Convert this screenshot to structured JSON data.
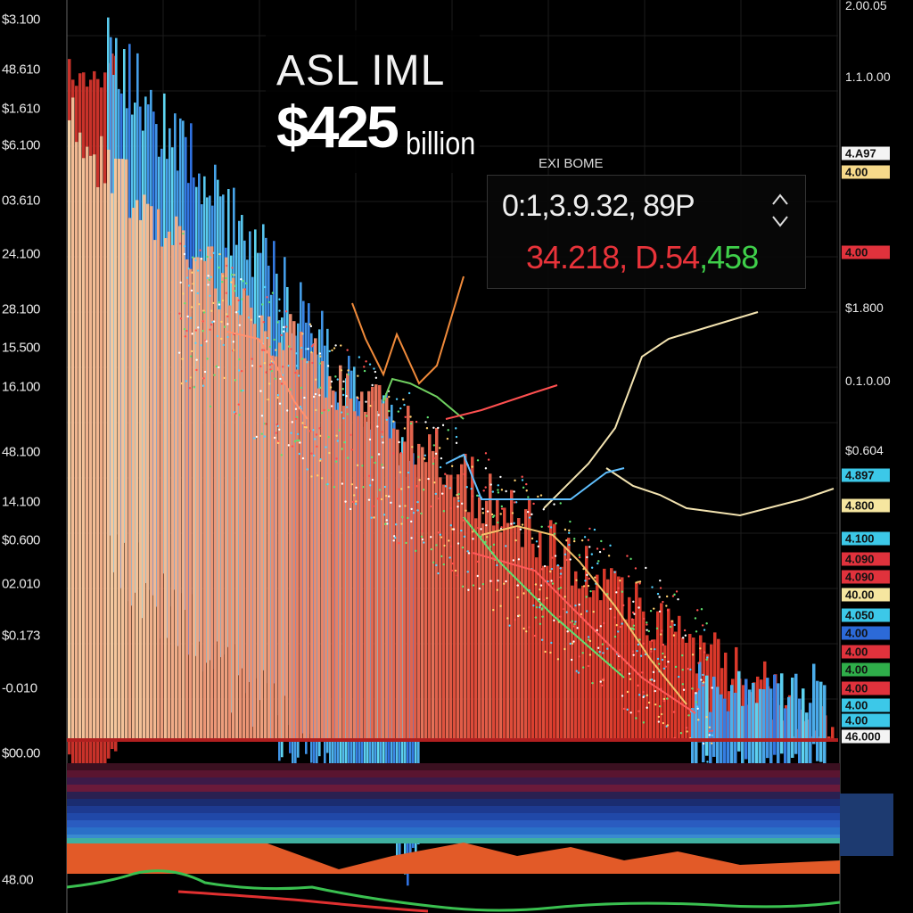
{
  "header": {
    "ticker": "ASL IML",
    "value": "$425",
    "unit": "billion"
  },
  "quote": {
    "label": "EXI BOME",
    "time": "0:1,3.9.32, 89P",
    "down": "34.218, D.54",
    "up": ",458"
  },
  "left_axis": [
    "$3.100",
    "48.610",
    "$1.610",
    "$6.100",
    "03.610",
    "24.100",
    "28.100",
    "15.500",
    "16.100",
    "48.100",
    "14.100",
    "$0.600",
    "02.010",
    "$0.173",
    "-0.010",
    "$00.00",
    "48.00"
  ],
  "right_axis": [
    "2.00.05",
    "1.1.0.00",
    "4.A97",
    "4.00",
    "4.00",
    "$1.800",
    "0.1.0.00",
    "$0.604",
    "4.897",
    "4.800",
    "4.100",
    "4.090",
    "4.090",
    "40.00",
    "4.050",
    "4.00",
    "4.00",
    "4.00",
    "4.00",
    "4.00",
    "4.00",
    "46.000"
  ]
}
